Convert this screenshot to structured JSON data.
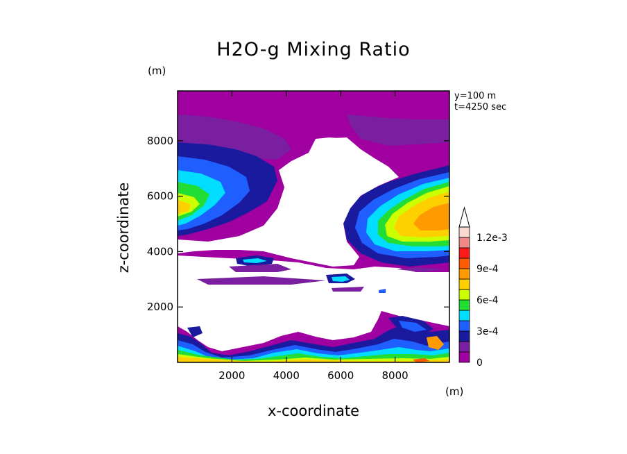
{
  "chart_data": {
    "type": "heatmap",
    "title": "H2O-g Mixing Ratio",
    "xlabel": "x-coordinate",
    "ylabel": "z-coordinate",
    "x_unit": "(m)",
    "y_unit": "(m)",
    "info_lines": [
      "y=100 m",
      "t=4250 sec"
    ],
    "xlim": [
      0,
      10000
    ],
    "ylim": [
      0,
      9800
    ],
    "xticks": [
      2000,
      4000,
      6000,
      8000
    ],
    "yticks": [
      2000,
      4000,
      6000,
      8000
    ],
    "colorbar": {
      "colors": [
        "#a0009f",
        "#7a1f9f",
        "#1a1a9f",
        "#1f5fff",
        "#00ddff",
        "#22dd33",
        "#ccff00",
        "#ffd000",
        "#ff9a00",
        "#ff5a00",
        "#ff1a1a",
        "#f08888",
        "#f8d8d0"
      ],
      "labels": [
        "0",
        "3e-4",
        "6e-4",
        "9e-4",
        "1.2e-3"
      ],
      "label_levels": [
        0,
        3,
        6,
        9,
        12
      ]
    }
  }
}
